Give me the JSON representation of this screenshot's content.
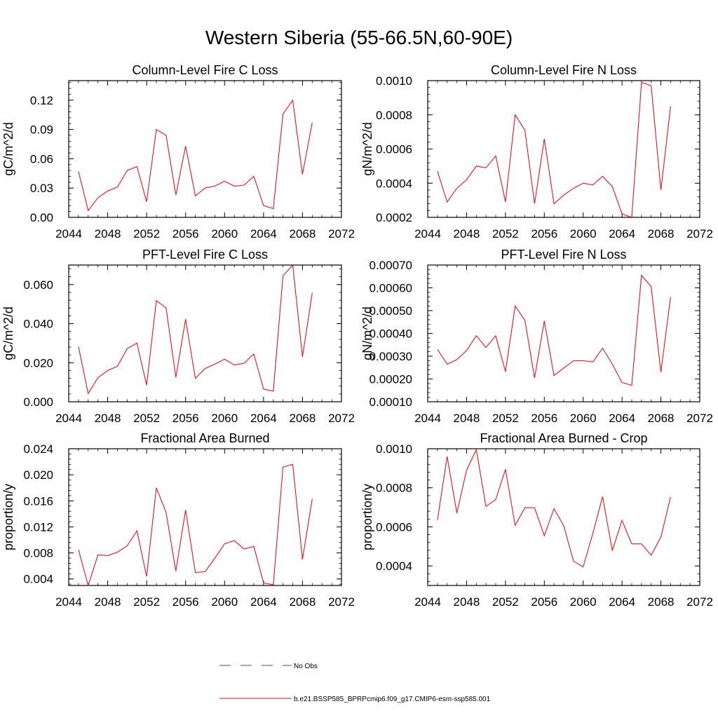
{
  "title": "Western Siberia (55-66.5N,60-90E)",
  "colors": {
    "model": "#e8141c",
    "obs": "#4a4aa8",
    "axis": "#000000"
  },
  "legend": {
    "items": [
      {
        "label": "No Obs",
        "style": "dashed",
        "color": "#4a4aa8"
      },
      {
        "label": "b.e21.BSSP585_BPRPcmip6.f09_g17.CMIP6-esm-ssp585.001",
        "style": "solid",
        "color": "#e8141c"
      }
    ]
  },
  "chart_data": [
    {
      "type": "line",
      "title": "Column-Level Fire C Loss",
      "ylabel": "gC/m^2/d",
      "xlim": [
        2044,
        2072
      ],
      "ylim": [
        0,
        0.14
      ],
      "xticks": [
        "2044",
        "2048",
        "2052",
        "2056",
        "2060",
        "2064",
        "2068",
        "2072"
      ],
      "yticks": [
        "0.00",
        "0.03",
        "0.06",
        "0.09",
        "0.12"
      ],
      "x": [
        2045,
        2046,
        2047,
        2048,
        2049,
        2050,
        2051,
        2052,
        2053,
        2054,
        2055,
        2056,
        2057,
        2058,
        2059,
        2060,
        2061,
        2062,
        2063,
        2064,
        2065,
        2066,
        2067,
        2068,
        2069
      ],
      "series": [
        {
          "values": [
            0.047,
            0.007,
            0.02,
            0.027,
            0.031,
            0.048,
            0.052,
            0.016,
            0.09,
            0.084,
            0.023,
            0.073,
            0.022,
            0.03,
            0.032,
            0.037,
            0.032,
            0.033,
            0.042,
            0.012,
            0.009,
            0.106,
            0.12,
            0.044,
            0.097
          ]
        }
      ]
    },
    {
      "type": "line",
      "title": "Column-Level Fire N Loss",
      "ylabel": "gN/m^2/d",
      "xlim": [
        2044,
        2072
      ],
      "ylim": [
        0.0002,
        0.001
      ],
      "xticks": [
        "2044",
        "2048",
        "2052",
        "2056",
        "2060",
        "2064",
        "2068",
        "2072"
      ],
      "yticks": [
        "0.0002",
        "0.0004",
        "0.0006",
        "0.0008",
        "0.0010"
      ],
      "x": [
        2045,
        2046,
        2047,
        2048,
        2049,
        2050,
        2051,
        2052,
        2053,
        2054,
        2055,
        2056,
        2057,
        2058,
        2059,
        2060,
        2061,
        2062,
        2063,
        2064,
        2065,
        2066,
        2067,
        2068,
        2069
      ],
      "series": [
        {
          "values": [
            0.00047,
            0.00029,
            0.00037,
            0.00042,
            0.0005,
            0.00049,
            0.00056,
            0.00029,
            0.0008,
            0.00071,
            0.00028,
            0.00066,
            0.00028,
            0.00033,
            0.00037,
            0.0004,
            0.00039,
            0.00044,
            0.00038,
            0.00022,
            0.0002,
            0.00099,
            0.00097,
            0.00036,
            0.00085
          ]
        }
      ]
    },
    {
      "type": "line",
      "title": "PFT-Level Fire C Loss",
      "ylabel": "gC/m^2/d",
      "xlim": [
        2044,
        2072
      ],
      "ylim": [
        0,
        0.07
      ],
      "xticks": [
        "2044",
        "2048",
        "2052",
        "2056",
        "2060",
        "2064",
        "2068",
        "2072"
      ],
      "yticks": [
        "0.000",
        "0.020",
        "0.040",
        "0.060"
      ],
      "x": [
        2045,
        2046,
        2047,
        2048,
        2049,
        2050,
        2051,
        2052,
        2053,
        2054,
        2055,
        2056,
        2057,
        2058,
        2059,
        2060,
        2061,
        2062,
        2063,
        2064,
        2065,
        2066,
        2067,
        2068,
        2069
      ],
      "series": [
        {
          "values": [
            0.0283,
            0.0042,
            0.0123,
            0.016,
            0.0182,
            0.0272,
            0.03,
            0.0085,
            0.0518,
            0.048,
            0.0125,
            0.0423,
            0.012,
            0.017,
            0.0193,
            0.0218,
            0.0188,
            0.0197,
            0.0245,
            0.0065,
            0.0055,
            0.0645,
            0.07,
            0.023,
            0.0557
          ]
        }
      ]
    },
    {
      "type": "line",
      "title": "PFT-Level Fire N Loss",
      "ylabel": "gN/m^2/d",
      "xlim": [
        2044,
        2072
      ],
      "ylim": [
        0.0001,
        0.0007
      ],
      "xticks": [
        "2044",
        "2048",
        "2052",
        "2056",
        "2060",
        "2064",
        "2068",
        "2072"
      ],
      "yticks": [
        "0.00010",
        "0.00020",
        "0.00030",
        "0.00040",
        "0.00050",
        "0.00060",
        "0.00070"
      ],
      "x": [
        2045,
        2046,
        2047,
        2048,
        2049,
        2050,
        2051,
        2052,
        2053,
        2054,
        2055,
        2056,
        2057,
        2058,
        2059,
        2060,
        2061,
        2062,
        2063,
        2064,
        2065,
        2066,
        2067,
        2068,
        2069
      ],
      "series": [
        {
          "values": [
            0.00033,
            0.000265,
            0.000285,
            0.000325,
            0.00039,
            0.000338,
            0.00039,
            0.000232,
            0.00052,
            0.000458,
            0.000205,
            0.000455,
            0.000215,
            0.000248,
            0.00028,
            0.00028,
            0.000275,
            0.000335,
            0.000265,
            0.000185,
            0.000172,
            0.000655,
            0.000605,
            0.00023,
            0.00056
          ]
        }
      ]
    },
    {
      "type": "line",
      "title": "Fractional Area Burned",
      "ylabel": "proportion/y",
      "xlim": [
        2044,
        2072
      ],
      "ylim": [
        0.003,
        0.024
      ],
      "xticks": [
        "2044",
        "2048",
        "2052",
        "2056",
        "2060",
        "2064",
        "2068",
        "2072"
      ],
      "yticks": [
        "0.004",
        "0.008",
        "0.012",
        "0.016",
        "0.020",
        "0.024"
      ],
      "x": [
        2045,
        2046,
        2047,
        2048,
        2049,
        2050,
        2051,
        2052,
        2053,
        2054,
        2055,
        2056,
        2057,
        2058,
        2059,
        2060,
        2061,
        2062,
        2063,
        2064,
        2065,
        2066,
        2067,
        2068,
        2069
      ],
      "series": [
        {
          "values": [
            0.0085,
            0.003,
            0.0077,
            0.0076,
            0.0081,
            0.0091,
            0.0114,
            0.0044,
            0.018,
            0.0142,
            0.0052,
            0.0146,
            0.005,
            0.0051,
            0.0072,
            0.0094,
            0.0099,
            0.0086,
            0.009,
            0.0034,
            0.0031,
            0.0212,
            0.0216,
            0.007,
            0.0163
          ]
        }
      ]
    },
    {
      "type": "line",
      "title": "Fractional Area Burned - Crop",
      "ylabel": "proportion/y",
      "xlim": [
        2044,
        2072
      ],
      "ylim": [
        0.0003,
        0.001
      ],
      "xticks": [
        "2044",
        "2048",
        "2052",
        "2056",
        "2060",
        "2064",
        "2068",
        "2072"
      ],
      "yticks": [
        "0.0004",
        "0.0006",
        "0.0008",
        "0.0010"
      ],
      "x": [
        2045,
        2046,
        2047,
        2048,
        2049,
        2050,
        2051,
        2052,
        2053,
        2054,
        2055,
        2056,
        2057,
        2058,
        2059,
        2060,
        2061,
        2062,
        2063,
        2064,
        2065,
        2066,
        2067,
        2068,
        2069
      ],
      "series": [
        {
          "values": [
            0.000635,
            0.00096,
            0.00067,
            0.00089,
            0.000995,
            0.000705,
            0.00074,
            0.000895,
            0.000608,
            0.000698,
            0.000698,
            0.000555,
            0.000693,
            0.000606,
            0.000425,
            0.000395,
            0.000568,
            0.000755,
            0.000478,
            0.000633,
            0.000513,
            0.000513,
            0.000455,
            0.000548,
            0.000753
          ]
        }
      ]
    }
  ]
}
